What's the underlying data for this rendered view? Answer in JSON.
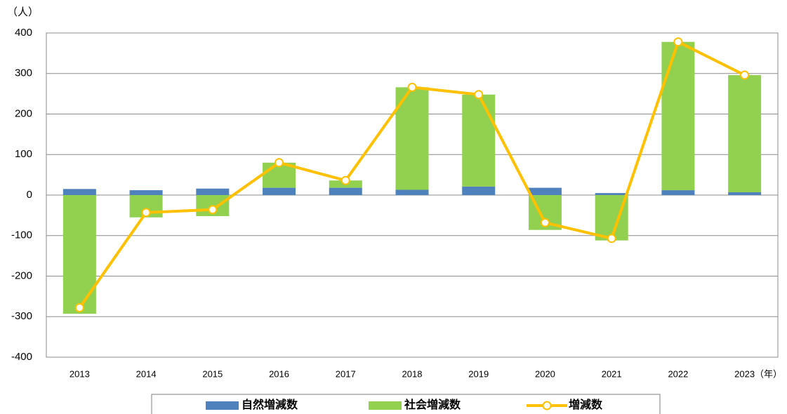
{
  "chart_data": {
    "type": "bar",
    "stacked": true,
    "y_unit": "（人）",
    "x_unit": "（年）",
    "categories": [
      "2013",
      "2014",
      "2015",
      "2016",
      "2017",
      "2018",
      "2019",
      "2020",
      "2021",
      "2022",
      "2023"
    ],
    "series": [
      {
        "name": "自然増減数",
        "color": "#4f81bd",
        "values": [
          15,
          12,
          16,
          18,
          18,
          13,
          21,
          18,
          5,
          12,
          7
        ]
      },
      {
        "name": "社会増減数",
        "color": "#92d050",
        "values": [
          -293,
          -55,
          -52,
          62,
          18,
          253,
          227,
          -86,
          -112,
          366,
          289
        ]
      },
      {
        "name": "増減数",
        "color": "#ffc000",
        "type": "line",
        "values": [
          -278,
          -43,
          -36,
          80,
          36,
          266,
          248,
          -68,
          -107,
          378,
          296
        ]
      }
    ],
    "ylim": [
      -400,
      400
    ],
    "yticks": [
      -400,
      -300,
      -200,
      -100,
      0,
      100,
      200,
      300,
      400
    ],
    "grid": true
  }
}
